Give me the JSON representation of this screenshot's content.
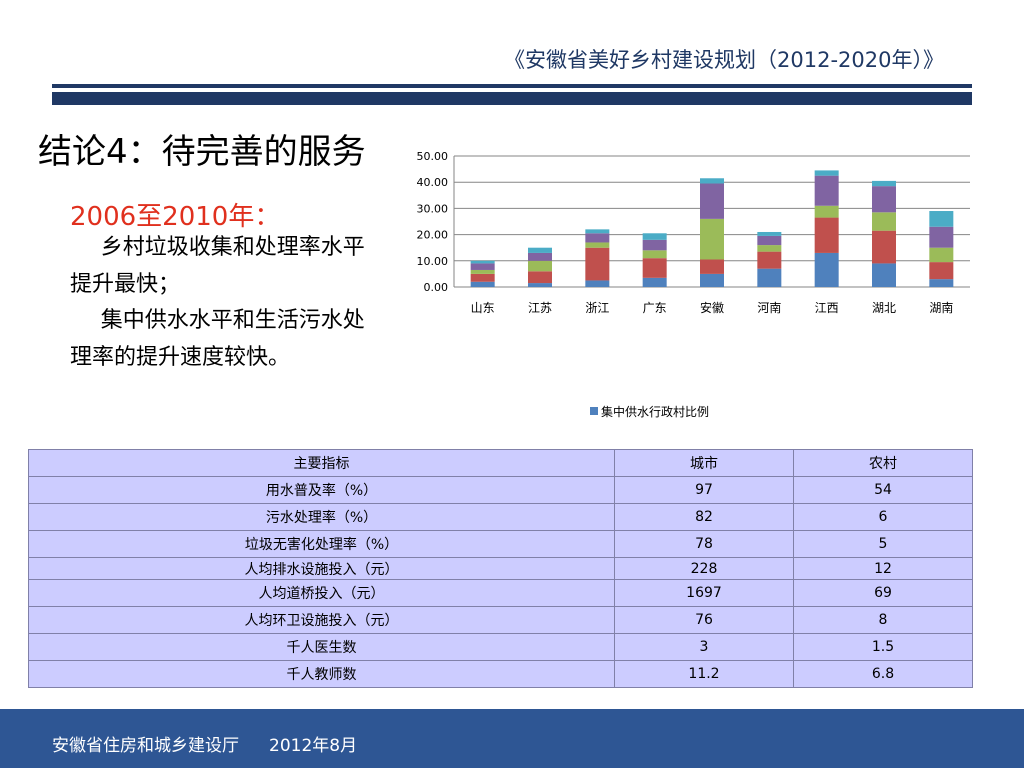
{
  "header": {
    "title": "《安徽省美好乡村建设规划（2012-2020年）》"
  },
  "slide": {
    "heading": "结论4：待完善的服务",
    "subheading": "2006至2010年：",
    "paragraph1": "乡村垃圾收集和处理率水平提升最快；",
    "paragraph2": "集中供水水平和生活污水处理率的提升速度较快。"
  },
  "chart_data": {
    "type": "bar",
    "stacked": true,
    "categories": [
      "山东",
      "江苏",
      "浙江",
      "广东",
      "安徽",
      "河南",
      "江西",
      "湖北",
      "湖南"
    ],
    "ylim": [
      0,
      50
    ],
    "yticks": [
      "0.00",
      "10.00",
      "20.00",
      "30.00",
      "40.00",
      "50.00"
    ],
    "grid": true,
    "legend_position": "bottom",
    "legend_label": "集中供水行政村比例",
    "series": [
      {
        "name": "集中供水行政村比例",
        "color": "#4f81bd",
        "values": [
          2.0,
          1.5,
          2.5,
          3.5,
          5.0,
          7.0,
          13.0,
          9.0,
          3.0
        ]
      },
      {
        "color": "#c0504d",
        "values": [
          3.0,
          4.5,
          12.5,
          7.5,
          5.5,
          6.5,
          13.5,
          12.5,
          6.5
        ]
      },
      {
        "color": "#9bbb59",
        "values": [
          1.5,
          4.0,
          2.0,
          3.0,
          15.5,
          2.5,
          4.5,
          7.0,
          5.5
        ]
      },
      {
        "color": "#8064a2",
        "values": [
          2.5,
          3.0,
          3.5,
          4.0,
          13.5,
          3.5,
          11.5,
          10.0,
          8.0
        ]
      },
      {
        "color": "#4bacc6",
        "values": [
          1.0,
          2.0,
          1.5,
          2.5,
          2.0,
          1.5,
          2.0,
          2.0,
          6.0
        ]
      }
    ]
  },
  "table": {
    "headers": [
      "主要指标",
      "城市",
      "农村"
    ],
    "rows": [
      [
        "用水普及率（%）",
        "97",
        "54"
      ],
      [
        "污水处理率（%）",
        "82",
        "6"
      ],
      [
        "垃圾无害化处理率（%）",
        "78",
        "5"
      ],
      [
        "人均排水设施投入（元）",
        "228",
        "12"
      ],
      [
        "人均道桥投入（元）",
        "1697",
        "69"
      ],
      [
        "人均环卫设施投入（元）",
        "76",
        "8"
      ],
      [
        "千人医生数",
        "3",
        "1.5"
      ],
      [
        "千人教师数",
        "11.2",
        "6.8"
      ]
    ]
  },
  "footer": {
    "org": "安徽省住房和城乡建设厅",
    "date": "2012年8月"
  }
}
